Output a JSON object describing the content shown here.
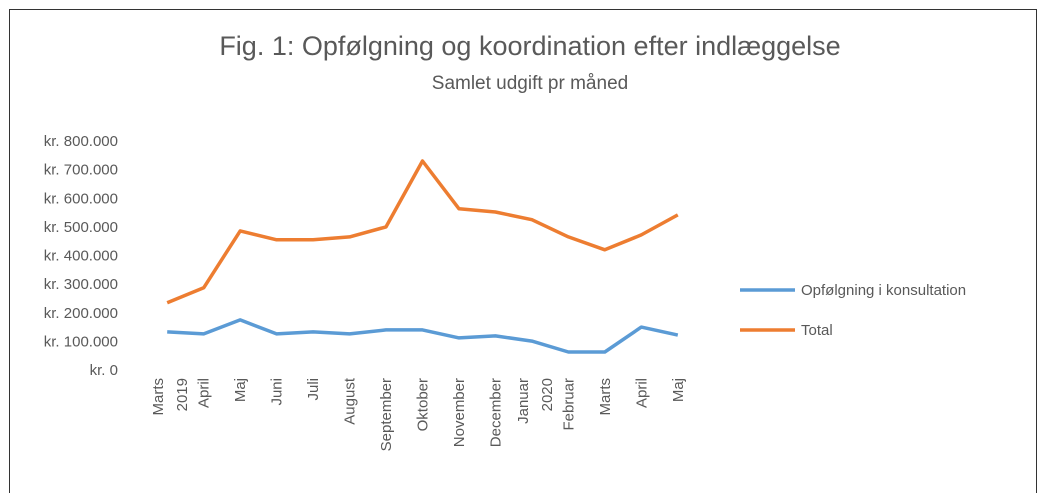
{
  "chart_data": {
    "type": "line",
    "title": "Fig. 1: Opfølgning og koordination efter indlæggelse",
    "subtitle": "Samlet udgift pr måned",
    "categories": [
      "Marts 2019",
      "April",
      "Maj",
      "Juni",
      "Juli",
      "August",
      "September",
      "Oktober",
      "November",
      "December",
      "Januar 2020",
      "Februar",
      "Marts",
      "April",
      "Maj"
    ],
    "series": [
      {
        "name": "Opfølgning i konsultation",
        "color": "#5b9bd5",
        "values": [
          133000,
          126000,
          175000,
          126000,
          133000,
          126000,
          140000,
          140000,
          112000,
          119000,
          101000,
          63000,
          63000,
          150000,
          122000
        ]
      },
      {
        "name": "Total",
        "color": "#ed7d31",
        "values": [
          235000,
          287000,
          486000,
          455000,
          455000,
          465000,
          500000,
          730000,
          563000,
          552000,
          525000,
          465000,
          420000,
          472000,
          542000
        ]
      }
    ],
    "ylim": [
      0,
      800000
    ],
    "yticks": [
      {
        "value": 0,
        "label": "kr. 0"
      },
      {
        "value": 100000,
        "label": "kr. 100.000"
      },
      {
        "value": 200000,
        "label": "kr. 200.000"
      },
      {
        "value": 300000,
        "label": "kr. 300.000"
      },
      {
        "value": 400000,
        "label": "kr. 400.000"
      },
      {
        "value": 500000,
        "label": "kr. 500.000"
      },
      {
        "value": 600000,
        "label": "kr. 600.000"
      },
      {
        "value": 700000,
        "label": "kr. 700.000"
      },
      {
        "value": 800000,
        "label": "kr. 800.000"
      }
    ],
    "grid": false,
    "legend": "right"
  }
}
